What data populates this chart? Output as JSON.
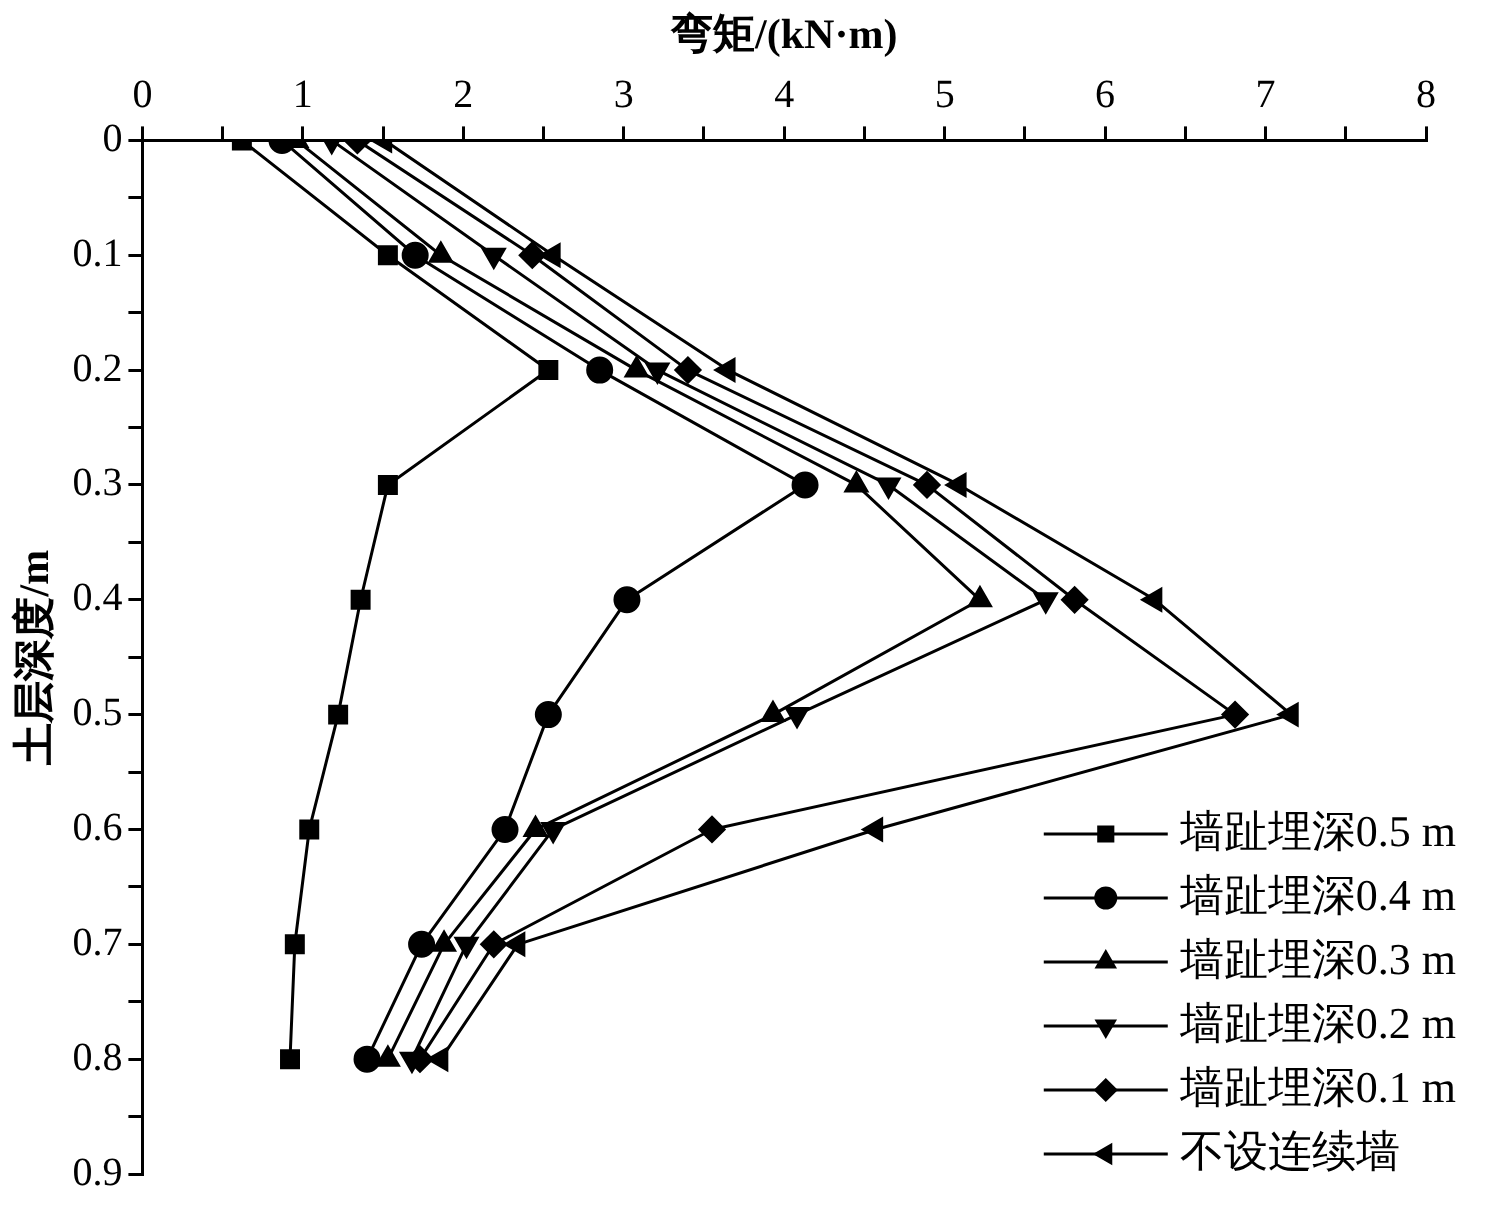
{
  "chart_data": {
    "type": "line",
    "xlabel": "弯矩/(kN·m)",
    "ylabel": "土层深度/m",
    "xlim": [
      0,
      8
    ],
    "xticks": [
      0,
      {
        "value": 0.5,
        "label": null
      },
      1,
      {
        "value": 1.5,
        "label": null
      },
      2,
      {
        "value": 2.5,
        "label": null
      },
      3,
      {
        "value": 3.5,
        "label": null
      },
      4,
      {
        "value": 4.5,
        "label": null
      },
      5,
      {
        "value": 5.5,
        "label": null
      },
      6,
      {
        "value": 6.5,
        "label": null
      },
      7,
      {
        "value": 7.5,
        "label": null
      },
      8
    ],
    "ylim": [
      0.9,
      0
    ],
    "yticks": [
      0,
      {
        "value": 0.05,
        "label": null
      },
      0.1,
      {
        "value": 0.15,
        "label": null
      },
      0.2,
      {
        "value": 0.25,
        "label": null
      },
      0.3,
      {
        "value": 0.35,
        "label": null
      },
      0.4,
      {
        "value": 0.45,
        "label": null
      },
      0.5,
      {
        "value": 0.55,
        "label": null
      },
      0.6,
      {
        "value": 0.65,
        "label": null
      },
      0.7,
      {
        "value": 0.75,
        "label": null
      },
      0.8,
      {
        "value": 0.85,
        "label": null
      },
      0.9
    ],
    "legend": "bottom right",
    "grid": false,
    "line_style": "solid",
    "series": [
      {
        "name": "墙趾埋深0.5 m",
        "color": "#000000",
        "marker": "square",
        "x": [
          0.62,
          1.53,
          2.53,
          1.53,
          1.36,
          1.22,
          1.04,
          0.95,
          0.92
        ],
        "values": [
          0,
          0.1,
          0.2,
          0.3,
          0.4,
          0.5,
          0.6,
          0.7,
          0.8
        ]
      },
      {
        "name": "墙趾埋深0.4 m",
        "color": "#000000",
        "marker": "circle",
        "x": [
          0.87,
          1.7,
          2.85,
          4.13,
          3.02,
          2.53,
          2.26,
          1.74,
          1.4
        ],
        "values": [
          0,
          0.1,
          0.2,
          0.3,
          0.4,
          0.5,
          0.6,
          0.7,
          0.8
        ]
      },
      {
        "name": "墙趾埋深0.3 m",
        "color": "#000000",
        "marker": "triangle",
        "x": [
          0.96,
          1.86,
          3.08,
          4.45,
          5.22,
          3.93,
          2.45,
          1.88,
          1.53
        ],
        "values": [
          0,
          0.1,
          0.2,
          0.3,
          0.4,
          0.5,
          0.6,
          0.7,
          0.8
        ]
      },
      {
        "name": "墙趾埋深0.2 m",
        "color": "#000000",
        "marker": "triangle-down",
        "x": [
          1.18,
          2.19,
          3.21,
          4.65,
          5.63,
          4.08,
          2.56,
          2.02,
          1.68
        ],
        "values": [
          0,
          0.1,
          0.2,
          0.3,
          0.4,
          0.5,
          0.6,
          0.7,
          0.8
        ]
      },
      {
        "name": "墙趾埋深0.1 m",
        "color": "#000000",
        "marker": "diamond",
        "x": [
          1.34,
          2.43,
          3.4,
          4.89,
          5.81,
          6.81,
          3.55,
          2.19,
          1.73
        ],
        "values": [
          0,
          0.1,
          0.2,
          0.3,
          0.4,
          0.5,
          0.6,
          0.7,
          0.8
        ]
      },
      {
        "name": "不设连续墙",
        "color": "#000000",
        "marker": "triangle-left",
        "x": [
          1.51,
          2.56,
          3.65,
          5.09,
          6.31,
          7.16,
          4.57,
          2.34,
          1.86
        ],
        "values": [
          0,
          0.1,
          0.2,
          0.3,
          0.4,
          0.5,
          0.6,
          0.7,
          0.8
        ]
      }
    ]
  }
}
